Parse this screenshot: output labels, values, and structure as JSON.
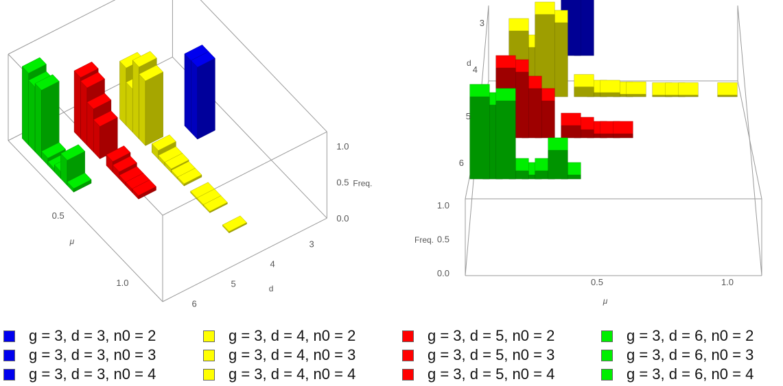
{
  "chart_data": [
    {
      "type": "bar3d",
      "view": "oblique",
      "xlabel": "μ",
      "ylabel": "d",
      "zlabel": "Freq.",
      "x_ticks": [
        "0.5",
        "1.0"
      ],
      "y_ticks": [
        "3",
        "4",
        "5",
        "6"
      ],
      "z_ticks": [
        "0.0",
        "0.5",
        "1.0"
      ],
      "zlim": [
        0,
        1.2
      ]
    },
    {
      "type": "bar3d",
      "view": "top-down",
      "xlabel": "μ",
      "ylabel": "d",
      "zlabel": "Freq.",
      "x_ticks": [
        "0.5",
        "1.0"
      ],
      "y_ticks": [
        "3",
        "4",
        "5",
        "6"
      ],
      "z_ticks": [
        "0.0",
        "0.5",
        "1.0"
      ],
      "zlim": [
        0,
        1.2
      ]
    }
  ],
  "bars": [
    {
      "d": 3,
      "mu": 0.45,
      "f": 1.0
    },
    {
      "d": 3,
      "mu": 0.4,
      "f": 1.0
    },
    {
      "d": 4,
      "mu": 0.3,
      "f": 1.0
    },
    {
      "d": 4,
      "mu": 0.35,
      "f": 0.9
    },
    {
      "d": 4,
      "mu": 0.2,
      "f": 0.8
    },
    {
      "d": 4,
      "mu": 0.25,
      "f": 0.6
    },
    {
      "d": 4,
      "mu": 0.45,
      "f": 0.12
    },
    {
      "d": 4,
      "mu": 0.5,
      "f": 0.05
    },
    {
      "d": 4,
      "mu": 0.55,
      "f": 0.05
    },
    {
      "d": 4,
      "mu": 0.6,
      "f": 0.03
    },
    {
      "d": 4,
      "mu": 0.65,
      "f": 0.03
    },
    {
      "d": 4,
      "mu": 0.75,
      "f": 0.02
    },
    {
      "d": 4,
      "mu": 0.8,
      "f": 0.02
    },
    {
      "d": 4,
      "mu": 0.85,
      "f": 0.02
    },
    {
      "d": 4,
      "mu": 1.0,
      "f": 0.02
    },
    {
      "d": 5,
      "mu": 0.15,
      "f": 0.85
    },
    {
      "d": 5,
      "mu": 0.2,
      "f": 0.8
    },
    {
      "d": 5,
      "mu": 0.25,
      "f": 0.6
    },
    {
      "d": 5,
      "mu": 0.3,
      "f": 0.45
    },
    {
      "d": 5,
      "mu": 0.4,
      "f": 0.15
    },
    {
      "d": 5,
      "mu": 0.45,
      "f": 0.1
    },
    {
      "d": 5,
      "mu": 0.5,
      "f": 0.05
    },
    {
      "d": 5,
      "mu": 0.55,
      "f": 0.05
    },
    {
      "d": 5,
      "mu": 0.6,
      "f": 0.05
    },
    {
      "d": 6,
      "mu": 0.05,
      "f": 1.0
    },
    {
      "d": 6,
      "mu": 0.1,
      "f": 0.9
    },
    {
      "d": 6,
      "mu": 0.15,
      "f": 0.95
    },
    {
      "d": 6,
      "mu": 0.2,
      "f": 0.1
    },
    {
      "d": 6,
      "mu": 0.25,
      "f": 0.05
    },
    {
      "d": 6,
      "mu": 0.3,
      "f": 0.1
    },
    {
      "d": 6,
      "mu": 0.35,
      "f": 0.35
    },
    {
      "d": 6,
      "mu": 0.4,
      "f": 0.05
    }
  ],
  "colors": {
    "d3": "#0000ee",
    "d4": "#ffff00",
    "d5": "#ff0000",
    "d6": "#00ee00"
  },
  "legend": {
    "columns": [
      {
        "color": "#0000ee",
        "items": [
          "g = 3, d = 3, n0 = 2",
          "g = 3, d = 3, n0 = 3",
          "g = 3, d = 3, n0 = 4"
        ]
      },
      {
        "color": "#ffff00",
        "items": [
          "g = 3, d = 4, n0 = 2",
          "g = 3, d = 4, n0 = 3",
          "g = 3, d = 4, n0 = 4"
        ]
      },
      {
        "color": "#ff0000",
        "items": [
          "g = 3, d = 5, n0 = 2",
          "g = 3, d = 5, n0 = 3",
          "g = 3, d = 5, n0 = 4"
        ]
      },
      {
        "color": "#00ee00",
        "items": [
          "g = 3, d = 6, n0 = 2",
          "g = 3, d = 6, n0 = 3",
          "g = 3, d = 6, n0 = 4"
        ]
      }
    ]
  }
}
